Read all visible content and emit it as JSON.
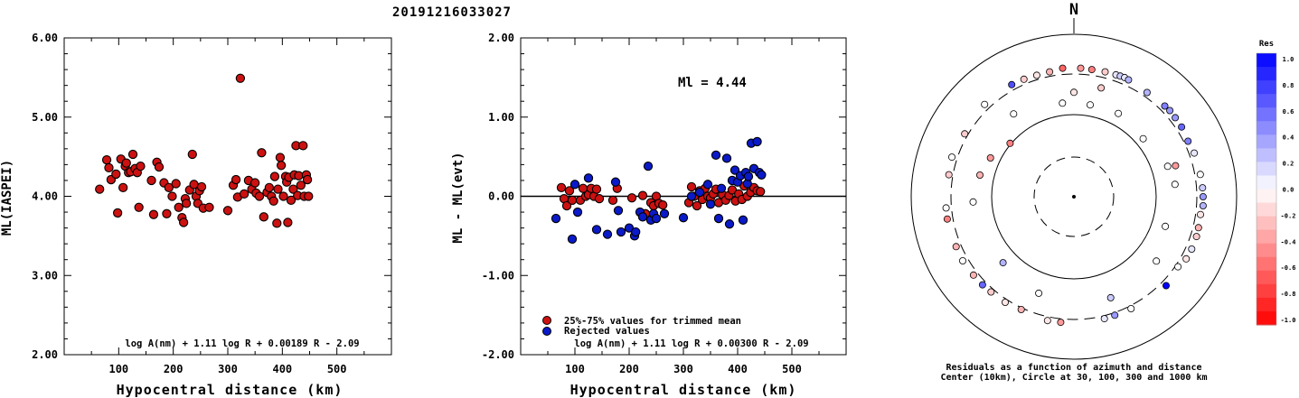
{
  "title": "20191216033027",
  "colors": {
    "accepted": "#cc1111",
    "rejected": "#0a1ac8",
    "outline": "#000000"
  },
  "chart_data": [
    {
      "type": "scatter",
      "ylabel": "ML(IASPEI)",
      "xlabel": "Hypocentral distance (km)",
      "xlim": [
        0,
        600
      ],
      "ylim": [
        2.0,
        6.0
      ],
      "x_ticks": [
        "100",
        "200",
        "300",
        "400",
        "500"
      ],
      "y_ticks": [
        "2.00",
        "3.00",
        "4.00",
        "5.00",
        "6.00"
      ],
      "formula": "log A(nm) + 1.11 log R + 0.00189 R - 2.09",
      "series": [
        {
          "color": "#cc1111",
          "points": [
            [
              65,
              4.09
            ],
            [
              78,
              4.46
            ],
            [
              82,
              4.36
            ],
            [
              86,
              4.21
            ],
            [
              95,
              4.28
            ],
            [
              98,
              3.79
            ],
            [
              104,
              4.47
            ],
            [
              108,
              4.11
            ],
            [
              112,
              4.38
            ],
            [
              114,
              4.42
            ],
            [
              118,
              4.3
            ],
            [
              122,
              4.31
            ],
            [
              126,
              4.53
            ],
            [
              130,
              4.35
            ],
            [
              134,
              4.3
            ],
            [
              137,
              3.86
            ],
            [
              140,
              4.38
            ],
            [
              160,
              4.2
            ],
            [
              164,
              3.77
            ],
            [
              170,
              4.43
            ],
            [
              174,
              4.37
            ],
            [
              183,
              4.17
            ],
            [
              188,
              3.78
            ],
            [
              192,
              4.11
            ],
            [
              198,
              4.0
            ],
            [
              205,
              4.16
            ],
            [
              210,
              3.86
            ],
            [
              216,
              3.73
            ],
            [
              219,
              3.67
            ],
            [
              222,
              3.97
            ],
            [
              224,
              3.91
            ],
            [
              230,
              4.08
            ],
            [
              235,
              4.53
            ],
            [
              238,
              4.15
            ],
            [
              242,
              4.0
            ],
            [
              245,
              3.91
            ],
            [
              248,
              4.07
            ],
            [
              252,
              4.12
            ],
            [
              255,
              3.85
            ],
            [
              266,
              3.86
            ],
            [
              300,
              3.82
            ],
            [
              310,
              4.14
            ],
            [
              315,
              4.21
            ],
            [
              318,
              3.99
            ],
            [
              323,
              5.49
            ],
            [
              330,
              4.03
            ],
            [
              338,
              4.2
            ],
            [
              344,
              4.09
            ],
            [
              350,
              4.17
            ],
            [
              352,
              4.04
            ],
            [
              358,
              4.0
            ],
            [
              362,
              4.55
            ],
            [
              366,
              3.74
            ],
            [
              372,
              4.05
            ],
            [
              376,
              4.11
            ],
            [
              380,
              4.0
            ],
            [
              384,
              3.94
            ],
            [
              386,
              4.25
            ],
            [
              390,
              3.66
            ],
            [
              392,
              4.09
            ],
            [
              396,
              4.49
            ],
            [
              398,
              4.39
            ],
            [
              402,
              4.0
            ],
            [
              406,
              4.25
            ],
            [
              408,
              4.18
            ],
            [
              410,
              3.67
            ],
            [
              412,
              4.24
            ],
            [
              416,
              3.95
            ],
            [
              420,
              4.09
            ],
            [
              422,
              4.27
            ],
            [
              425,
              4.64
            ],
            [
              428,
              4.01
            ],
            [
              430,
              4.26
            ],
            [
              434,
              4.14
            ],
            [
              438,
              4.64
            ],
            [
              440,
              4.0
            ],
            [
              444,
              4.27
            ],
            [
              446,
              4.21
            ],
            [
              448,
              4.0
            ]
          ]
        }
      ]
    },
    {
      "type": "scatter",
      "ylabel": "ML - ML(evt)",
      "xlabel": "Hypocentral distance (km)",
      "xlim": [
        0,
        600
      ],
      "ylim": [
        -2.0,
        2.0
      ],
      "x_ticks": [
        "100",
        "200",
        "300",
        "400",
        "500"
      ],
      "y_ticks": [
        "-2.00",
        "-1.00",
        "0.00",
        "1.00",
        "2.00"
      ],
      "annotation": "Ml = 4.44",
      "formula": "log A(nm) + 1.11 log R + 0.00300 R - 2.09",
      "legend": [
        "25%-75% values for trimmed mean",
        "Rejected values"
      ],
      "series": [
        {
          "name": "25%-75% values for trimmed mean",
          "color": "#cc1111",
          "points": [
            [
              75,
              0.11
            ],
            [
              80,
              -0.03
            ],
            [
              85,
              -0.12
            ],
            [
              90,
              0.07
            ],
            [
              95,
              -0.05
            ],
            [
              110,
              -0.05
            ],
            [
              115,
              0.1
            ],
            [
              120,
              0.0
            ],
            [
              125,
              0.02
            ],
            [
              130,
              0.1
            ],
            [
              135,
              0.0
            ],
            [
              140,
              0.09
            ],
            [
              145,
              -0.03
            ],
            [
              170,
              -0.05
            ],
            [
              178,
              0.1
            ],
            [
              205,
              -0.02
            ],
            [
              225,
              0.01
            ],
            [
              230,
              -0.22
            ],
            [
              240,
              -0.08
            ],
            [
              245,
              -0.12
            ],
            [
              250,
              0.0
            ],
            [
              255,
              -0.09
            ],
            [
              262,
              -0.11
            ],
            [
              310,
              -0.08
            ],
            [
              315,
              0.12
            ],
            [
              320,
              0.0
            ],
            [
              325,
              -0.12
            ],
            [
              330,
              0.07
            ],
            [
              335,
              -0.04
            ],
            [
              340,
              0.1
            ],
            [
              345,
              0.0
            ],
            [
              350,
              -0.02
            ],
            [
              355,
              0.03
            ],
            [
              360,
              0.09
            ],
            [
              365,
              -0.08
            ],
            [
              372,
              0.02
            ],
            [
              378,
              -0.05
            ],
            [
              384,
              0.01
            ],
            [
              390,
              0.08
            ],
            [
              396,
              -0.06
            ],
            [
              402,
              0.03
            ],
            [
              408,
              -0.04
            ],
            [
              412,
              0.13
            ],
            [
              418,
              0.0
            ],
            [
              424,
              0.05
            ],
            [
              430,
              0.11
            ],
            [
              436,
              0.07
            ],
            [
              442,
              0.06
            ]
          ]
        },
        {
          "name": "Rejected values",
          "color": "#0a1ac8",
          "points": [
            [
              65,
              -0.28
            ],
            [
              95,
              -0.54
            ],
            [
              100,
              0.15
            ],
            [
              105,
              -0.2
            ],
            [
              125,
              0.23
            ],
            [
              140,
              -0.42
            ],
            [
              160,
              -0.48
            ],
            [
              175,
              0.18
            ],
            [
              180,
              -0.18
            ],
            [
              185,
              -0.45
            ],
            [
              200,
              -0.4
            ],
            [
              210,
              -0.5
            ],
            [
              212,
              -0.45
            ],
            [
              220,
              -0.2
            ],
            [
              225,
              -0.26
            ],
            [
              235,
              0.38
            ],
            [
              240,
              -0.3
            ],
            [
              245,
              -0.22
            ],
            [
              250,
              -0.28
            ],
            [
              265,
              -0.22
            ],
            [
              300,
              -0.27
            ],
            [
              315,
              0.0
            ],
            [
              330,
              0.05
            ],
            [
              345,
              0.15
            ],
            [
              350,
              -0.1
            ],
            [
              360,
              0.52
            ],
            [
              365,
              -0.28
            ],
            [
              370,
              0.1
            ],
            [
              380,
              0.48
            ],
            [
              385,
              -0.35
            ],
            [
              390,
              0.2
            ],
            [
              395,
              0.33
            ],
            [
              400,
              0.18
            ],
            [
              405,
              0.26
            ],
            [
              410,
              -0.3
            ],
            [
              415,
              0.3
            ],
            [
              418,
              0.16
            ],
            [
              420,
              0.25
            ],
            [
              425,
              0.67
            ],
            [
              430,
              0.35
            ],
            [
              436,
              0.69
            ],
            [
              440,
              0.3
            ],
            [
              444,
              0.27
            ]
          ]
        }
      ]
    },
    {
      "type": "scatter",
      "subtype": "polar",
      "north_label": "N",
      "caption": [
        "Residuals as a function of azimuth and distance",
        "Center (10km), Circle at 30, 100, 300 and 1000 km"
      ],
      "colorbar": {
        "title": "Res",
        "ticks": [
          "1.0",
          "0.8",
          "0.6",
          "0.4",
          "0.2",
          "0.0",
          "-0.2",
          "-0.4",
          "-0.6",
          "-0.8",
          "-1.0"
        ]
      },
      "rings_km": [
        30,
        100,
        300,
        1000
      ],
      "points_az_dist_res": [
        [
          343,
          375,
          -0.1
        ],
        [
          349,
          380,
          -0.3
        ],
        [
          355,
          410,
          -0.6
        ],
        [
          3,
          405,
          -0.4
        ],
        [
          8,
          400,
          -0.5
        ],
        [
          14,
          405,
          -0.2
        ],
        [
          19,
          410,
          0.1
        ],
        [
          21,
          415,
          0.2
        ],
        [
          23,
          420,
          0.1
        ],
        [
          25,
          410,
          0.3
        ],
        [
          35,
          380,
          0.3
        ],
        [
          45,
          398,
          0.5
        ],
        [
          48,
          408,
          0.4
        ],
        [
          52,
          400,
          0.4
        ],
        [
          57,
          395,
          0.6
        ],
        [
          64,
          370,
          0.5
        ],
        [
          70,
          390,
          0.1
        ],
        [
          80,
          395,
          0.0
        ],
        [
          86,
          405,
          0.2
        ],
        [
          90,
          410,
          0.4
        ],
        [
          94,
          415,
          0.3
        ],
        [
          98,
          385,
          -0.1
        ],
        [
          104,
          395,
          -0.3
        ],
        [
          108,
          405,
          -0.2
        ],
        [
          114,
          405,
          0.1
        ],
        [
          119,
          395,
          -0.1
        ],
        [
          124,
          345,
          0.0
        ],
        [
          134,
          392,
          1.0
        ],
        [
          153,
          350,
          0.0
        ],
        [
          161,
          345,
          0.4
        ],
        [
          166,
          352,
          0.1
        ],
        [
          186,
          362,
          -0.4
        ],
        [
          192,
          368,
          -0.1
        ],
        [
          205,
          330,
          -0.3
        ],
        [
          213,
          356,
          -0.1
        ],
        [
          221,
          360,
          -0.2
        ],
        [
          226,
          372,
          0.6
        ],
        [
          232,
          380,
          -0.3
        ],
        [
          240,
          395,
          0.0
        ],
        [
          247,
          388,
          -0.3
        ],
        [
          260,
          400,
          -0.5
        ],
        [
          265,
          395,
          0.0
        ],
        [
          280,
          370,
          -0.2
        ],
        [
          288,
          395,
          0.0
        ],
        [
          300,
          355,
          -0.2
        ],
        [
          316,
          398,
          0.0
        ],
        [
          331,
          395,
          0.7
        ],
        [
          337,
          386,
          -0.2
        ],
        [
          324,
          200,
          0.0
        ],
        [
          353,
          160,
          0.0
        ],
        [
          0,
          210,
          -0.1
        ],
        [
          10,
          155,
          0.0
        ],
        [
          14,
          248,
          -0.2
        ],
        [
          28,
          160,
          0.0
        ],
        [
          50,
          140,
          0.0
        ],
        [
          72,
          180,
          0.0
        ],
        [
          73,
          218,
          -0.4
        ],
        [
          83,
          196,
          0.0
        ],
        [
          108,
          168,
          0.0
        ],
        [
          128,
          210,
          0.0
        ],
        [
          160,
          225,
          0.2
        ],
        [
          200,
          201,
          0.0
        ],
        [
          227,
          172,
          0.3
        ],
        [
          267,
          192,
          0.0
        ],
        [
          283,
          170,
          -0.3
        ],
        [
          295,
          148,
          -0.4
        ],
        [
          310,
          105,
          -0.5
        ]
      ]
    }
  ]
}
